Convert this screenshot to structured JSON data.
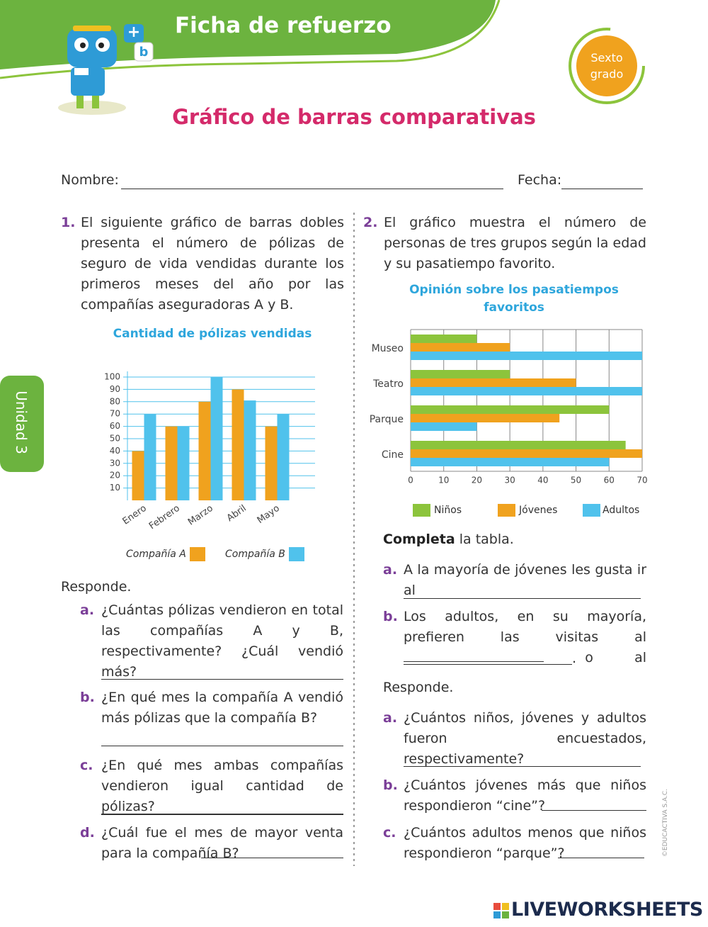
{
  "header": {
    "title": "Ficha de refuerzo",
    "grade": [
      "Sexto",
      "grado"
    ],
    "subtitle": "Gráfico de barras comparativas",
    "unit": "Unidad 3"
  },
  "form": {
    "name": "Nombre:",
    "date": "Fecha:"
  },
  "question1": {
    "number": "1.",
    "text": "El siguiente gráfico de barras dobles presenta el número de pólizas de seguro de vida vendidas durante los primeros meses del año por las compañías aseguradoras A y B."
  },
  "chart_data": [
    {
      "type": "bar",
      "title": "Cantidad de pólizas vendidas",
      "categories": [
        "Enero",
        "Febrero",
        "Marzo",
        "Abril",
        "Mayo"
      ],
      "series": [
        {
          "name": "Compañía A",
          "color": "#f0a21e",
          "values": [
            40,
            60,
            80,
            90,
            60
          ]
        },
        {
          "name": "Compañía B",
          "color": "#50c2ec",
          "values": [
            70,
            60,
            100,
            81,
            70
          ]
        }
      ],
      "ylim": [
        0,
        100
      ],
      "yticks": [
        10,
        20,
        30,
        40,
        50,
        60,
        70,
        80,
        90,
        100
      ],
      "grid": true
    },
    {
      "type": "barh",
      "title": "Opinión sobre los pasatiempos favoritos",
      "categories": [
        "Museo",
        "Teatro",
        "Parque",
        "Cine"
      ],
      "series": [
        {
          "name": "Niños",
          "color": "#8cc43c",
          "values": [
            20,
            30,
            60,
            65
          ]
        },
        {
          "name": "Jóvenes",
          "color": "#f0a21e",
          "values": [
            30,
            50,
            45,
            70
          ]
        },
        {
          "name": "Adultos",
          "color": "#50c2ec",
          "values": [
            70,
            70,
            20,
            60
          ]
        }
      ],
      "xlim": [
        0,
        70
      ],
      "xticks": [
        0,
        10,
        20,
        30,
        40,
        50,
        60,
        70
      ],
      "grid": true
    }
  ],
  "left_questions": {
    "heading": "Responde.",
    "items": [
      {
        "label": "a.",
        "text": "¿Cuántas pólizas vendieron en total las compañías A y B, respectivamente? ¿Cuál vendió más?"
      },
      {
        "label": "b.",
        "text": "¿En qué mes la compañía A vendió más pólizas que la compañía B?"
      },
      {
        "label": "c.",
        "text": "¿En qué mes ambas compañías vendieron igual cantidad de pólizas?"
      },
      {
        "label": "d.",
        "text": "¿Cuál fue el mes de mayor venta para la compañía B?"
      }
    ]
  },
  "question2": {
    "number": "2.",
    "text": "El gráfico muestra el número de personas de tres grupos según la edad y su pasatiempo favorito."
  },
  "completa": {
    "heading_bold": "Completa",
    "heading_rest": "la tabla.",
    "items": [
      {
        "label": "a.",
        "text": "A la mayoría de jóvenes les gusta ir al"
      },
      {
        "label": "b.",
        "text": "Los adultos, en su mayoría, prefieren las visitas al",
        "text2": "o al",
        "punct": "."
      }
    ]
  },
  "right_questions": {
    "heading": "Responde.",
    "items": [
      {
        "label": "a.",
        "text": "¿Cuántos niños, jóvenes y adultos fueron encuestados, respectivamente?"
      },
      {
        "label": "b.",
        "text": "¿Cuántos jóvenes más que niños respondieron “cine”?"
      },
      {
        "label": "c.",
        "text": "¿Cuántos adultos menos que niños respondieron “parque”?"
      }
    ]
  },
  "footer": {
    "copyright": "©EDUCACTIVA S.A.C.",
    "brand": "LIVEWORKSHEETS"
  }
}
